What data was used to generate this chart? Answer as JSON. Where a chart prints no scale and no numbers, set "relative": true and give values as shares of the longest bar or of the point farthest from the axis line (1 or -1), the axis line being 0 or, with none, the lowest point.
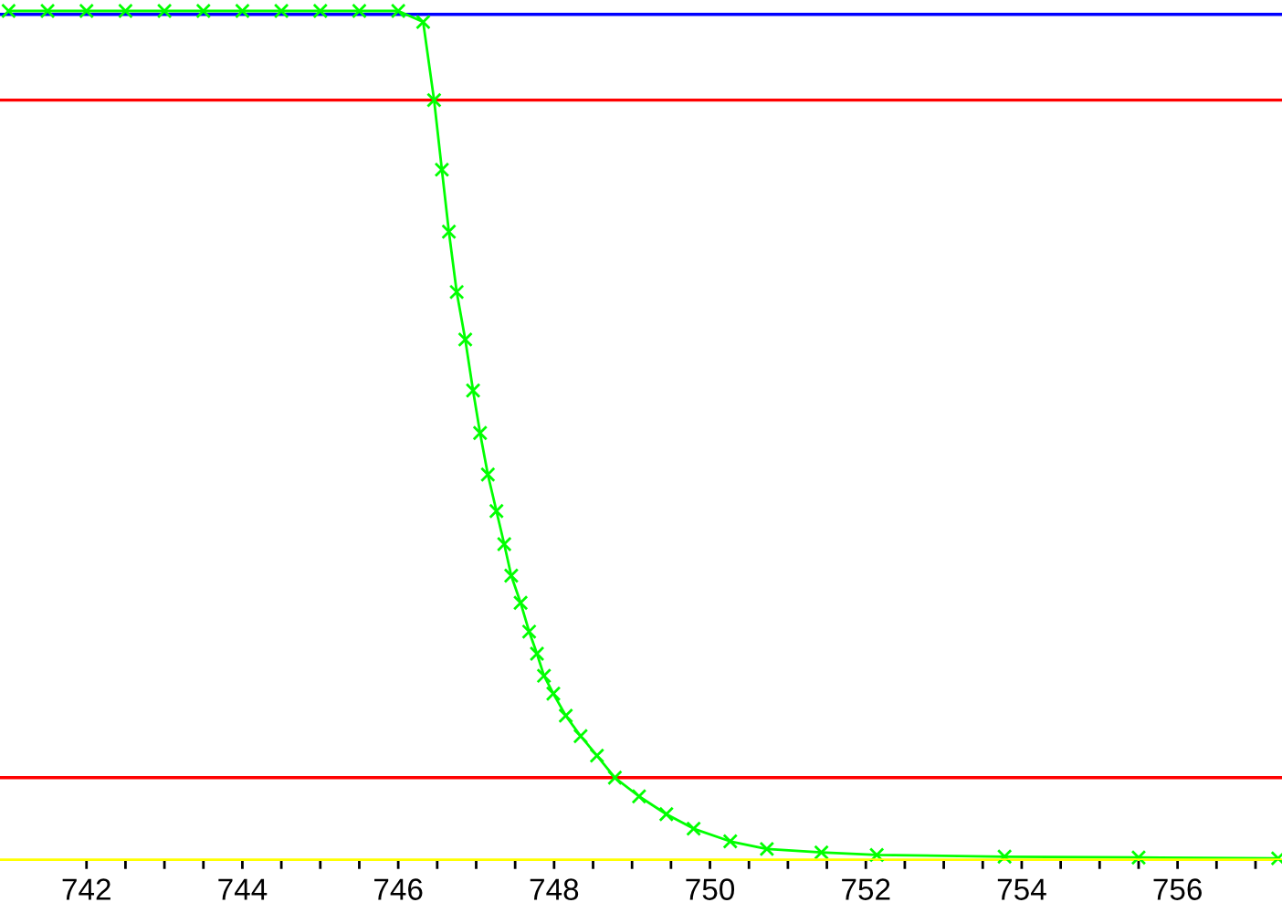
{
  "chart_data": {
    "type": "line",
    "relative": true,
    "marker": "cross",
    "line_style": "solid",
    "grid": false,
    "tick_labels": "x",
    "xlim": [
      740.89,
      757.34
    ],
    "xticks": [
      742,
      {
        "value": 742.5,
        "label": null
      },
      {
        "value": 743,
        "label": null
      },
      {
        "value": 743.5,
        "label": null
      },
      744,
      {
        "value": 744.5,
        "label": null
      },
      {
        "value": 745,
        "label": null
      },
      {
        "value": 745.5,
        "label": null
      },
      746,
      {
        "value": 746.5,
        "label": null
      },
      {
        "value": 747,
        "label": null
      },
      {
        "value": 747.5,
        "label": null
      },
      748,
      {
        "value": 748.5,
        "label": null
      },
      {
        "value": 749,
        "label": null
      },
      {
        "value": 749.5,
        "label": null
      },
      750,
      {
        "value": 750.5,
        "label": null
      },
      {
        "value": 751,
        "label": null
      },
      {
        "value": 751.5,
        "label": null
      },
      752,
      {
        "value": 752.5,
        "label": null
      },
      {
        "value": 753,
        "label": null
      },
      {
        "value": 753.5,
        "label": null
      },
      754,
      {
        "value": 754.5,
        "label": null
      },
      {
        "value": 755,
        "label": null
      },
      {
        "value": 755.5,
        "label": null
      },
      756,
      {
        "value": 756.5,
        "label": null
      },
      {
        "value": 757,
        "label": null
      }
    ],
    "series": [
      {
        "color": "#00ff00",
        "x": [
          741.0,
          741.5,
          742.0,
          742.5,
          743.0,
          743.5,
          744.0,
          744.5,
          745.0,
          745.5,
          746.0,
          746.32,
          746.46,
          746.56,
          746.65,
          746.75,
          746.86,
          746.96,
          747.05,
          747.15,
          747.26,
          747.36,
          747.45,
          747.57,
          747.68,
          747.78,
          747.87,
          747.99,
          748.15,
          748.34,
          748.55,
          748.78,
          749.09,
          749.44,
          749.79,
          750.26,
          750.73,
          751.43,
          752.14,
          753.78,
          755.5,
          757.29
        ],
        "values": [
          1.0,
          1.0,
          1.0,
          1.0,
          1.0,
          1.0,
          1.0,
          1.0,
          1.0,
          1.0,
          1.0,
          0.987,
          0.895,
          0.813,
          0.74,
          0.669,
          0.613,
          0.553,
          0.503,
          0.454,
          0.411,
          0.372,
          0.335,
          0.303,
          0.269,
          0.243,
          0.217,
          0.196,
          0.17,
          0.146,
          0.123,
          0.097,
          0.075,
          0.054,
          0.037,
          0.022,
          0.013,
          0.009,
          0.006,
          0.004,
          0.003,
          0.002
        ]
      }
    ],
    "ref_lines": [
      {
        "axis": "y",
        "value": 0.996,
        "color": "#0000ff"
      },
      {
        "axis": "y",
        "value": 0.895,
        "color": "#ff0000"
      },
      {
        "axis": "y",
        "value": 0.097,
        "color": "#ff0000"
      },
      {
        "axis": "y",
        "value": 0,
        "color": "#ffff00"
      }
    ]
  }
}
